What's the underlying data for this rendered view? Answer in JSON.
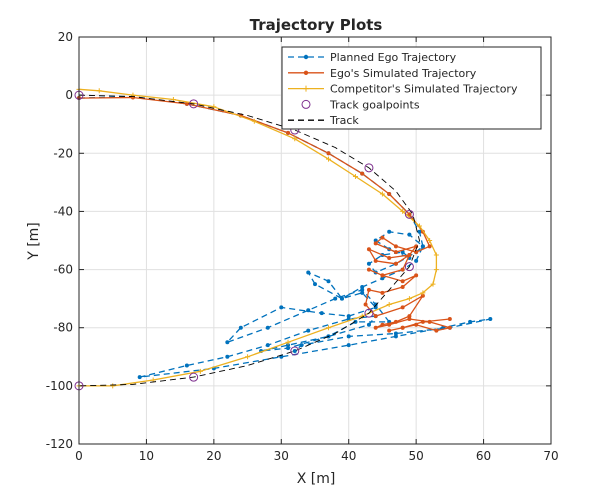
{
  "chart_data": {
    "type": "line",
    "title": "Trajectory Plots",
    "xlabel": "X [m]",
    "ylabel": "Y [m]",
    "xlim": [
      0,
      70
    ],
    "ylim": [
      -120,
      20
    ],
    "xticks": [
      0,
      10,
      20,
      30,
      40,
      50,
      60,
      70
    ],
    "yticks": [
      -120,
      -100,
      -80,
      -60,
      -40,
      -20,
      0,
      20
    ],
    "grid": true,
    "legend_position": "top-right",
    "series": [
      {
        "name": "Planned Ego Trajectory",
        "color": "#0072BD",
        "style": "dashed",
        "marker": "dot",
        "x": [
          0,
          8,
          16,
          24,
          31,
          37,
          42,
          46,
          49,
          50.5,
          51,
          49,
          46,
          44,
          46,
          49,
          48,
          45,
          43,
          44,
          47,
          50,
          51,
          50,
          48,
          45,
          42,
          39,
          37,
          34,
          35,
          39,
          42,
          44,
          40,
          36,
          30,
          24,
          22,
          28,
          34,
          38,
          42,
          44,
          46,
          41,
          37,
          31,
          27,
          31,
          37,
          43,
          44,
          40,
          34,
          28,
          22,
          16,
          9,
          20,
          30,
          40,
          47,
          54,
          58,
          61,
          55,
          47,
          40,
          33,
          32
        ],
        "y": [
          -1,
          -0.5,
          -3,
          -7,
          -13,
          -20,
          -27,
          -34,
          -41,
          -47,
          -52,
          -48,
          -47,
          -50,
          -53,
          -56,
          -54,
          -55,
          -58,
          -61,
          -58,
          -54,
          -52,
          -57,
          -60,
          -63,
          -66,
          -70,
          -64,
          -61,
          -65,
          -70,
          -68,
          -73,
          -76,
          -75,
          -73,
          -80,
          -85,
          -80,
          -74,
          -70,
          -67,
          -72,
          -78,
          -78,
          -83,
          -87,
          -88,
          -86,
          -83,
          -79,
          -76,
          -77,
          -81,
          -86,
          -90,
          -93,
          -97,
          -94,
          -90,
          -86,
          -83,
          -80,
          -78,
          -77,
          -80,
          -82,
          -83,
          -86,
          -88
        ]
      },
      {
        "name": "Ego's Simulated Trajectory",
        "color": "#D95319",
        "style": "solid",
        "marker": "dot",
        "x": [
          0,
          8,
          16,
          24,
          31,
          37,
          42,
          46,
          49,
          51,
          52,
          50,
          47,
          45,
          44,
          47,
          50,
          49,
          46,
          43,
          44,
          47,
          49,
          48,
          45,
          43,
          45,
          48,
          50,
          48,
          45,
          43,
          42.5,
          44,
          48,
          51,
          49,
          47,
          45,
          44,
          46,
          49,
          52,
          55,
          53,
          50,
          48,
          46,
          48,
          51,
          55
        ],
        "y": [
          -1,
          -0.8,
          -3,
          -7,
          -13,
          -20,
          -27,
          -34,
          -41,
          -47,
          -52,
          -54,
          -52,
          -49,
          -51,
          -54,
          -52,
          -55,
          -56,
          -53,
          -57,
          -58,
          -55,
          -60,
          -62,
          -60,
          -62,
          -64,
          -62,
          -66,
          -68,
          -67,
          -72,
          -76,
          -73,
          -69,
          -76,
          -78,
          -79,
          -80,
          -79,
          -77,
          -78,
          -80,
          -81,
          -79,
          -80,
          -81,
          -80,
          -78,
          -77
        ]
      },
      {
        "name": "Competitor's Simulated Trajectory",
        "color": "#EDB120",
        "style": "solid",
        "marker": "plus",
        "x": [
          0,
          3,
          8,
          14,
          20,
          26,
          32,
          37,
          41,
          45,
          48,
          50.5,
          52,
          53,
          53,
          52.5,
          51,
          49,
          46,
          42,
          37,
          31,
          25,
          18,
          11,
          5,
          0
        ],
        "y": [
          2,
          1.5,
          0,
          -1.5,
          -4,
          -9,
          -15,
          -22,
          -28,
          -34,
          -40,
          -45,
          -50,
          -55,
          -60,
          -65,
          -68,
          -70,
          -72,
          -76,
          -80,
          -85,
          -90,
          -95,
          -98,
          -100,
          -100
        ]
      },
      {
        "name": "Track goalpoints",
        "color": "#7E2F8E",
        "style": "none",
        "marker": "circle",
        "x": [
          0,
          17,
          32,
          43,
          49,
          49,
          43,
          32,
          17,
          0
        ],
        "y": [
          0,
          -3,
          -12,
          -25,
          -41,
          -59,
          -75,
          -88,
          -97,
          -100
        ]
      },
      {
        "name": "Track",
        "color": "#000000",
        "style": "dashed",
        "marker": "none",
        "x": [
          0,
          8,
          17,
          25,
          32,
          38,
          43,
          47,
          49.5,
          50.5,
          49,
          46,
          43,
          38,
          32,
          25,
          17,
          8,
          0
        ],
        "y": [
          0,
          -0.5,
          -3,
          -7,
          -12,
          -18,
          -25,
          -33,
          -41,
          -50,
          -59,
          -67,
          -75,
          -82,
          -88,
          -93,
          -97,
          -99.5,
          -100
        ]
      }
    ]
  }
}
